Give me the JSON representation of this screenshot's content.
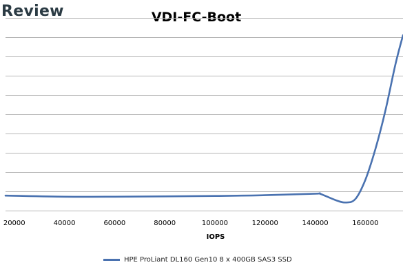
{
  "watermark": "Review",
  "colors": {
    "series": "#4a72b0",
    "grid": "#b5b5b5"
  },
  "chart_data": {
    "type": "line",
    "title": "VDI-FC-Boot",
    "xlabel": "IOPS",
    "ylabel": "",
    "xlim": [
      16500,
      175000
    ],
    "x_ticks": [
      20000,
      40000,
      60000,
      80000,
      100000,
      120000,
      140000,
      160000
    ],
    "ylim": [
      0,
      10
    ],
    "y_gridlines": [
      1,
      2,
      3,
      4,
      5,
      6,
      7,
      8,
      9,
      10
    ],
    "grid": true,
    "legend": "bottom",
    "series": [
      {
        "name": "HPE ProLiant DL160 Gen10 8 x 400GB SAS3 SSD",
        "x": [
          16500,
          40000,
          60000,
          80000,
          100000,
          120000,
          140000,
          142000,
          148000,
          152000,
          156000,
          160000,
          164000,
          168000,
          172000,
          175000
        ],
        "y": [
          0.78,
          0.72,
          0.72,
          0.74,
          0.76,
          0.8,
          0.88,
          0.87,
          0.55,
          0.42,
          0.6,
          1.6,
          3.2,
          5.2,
          7.6,
          9.1
        ]
      }
    ]
  }
}
